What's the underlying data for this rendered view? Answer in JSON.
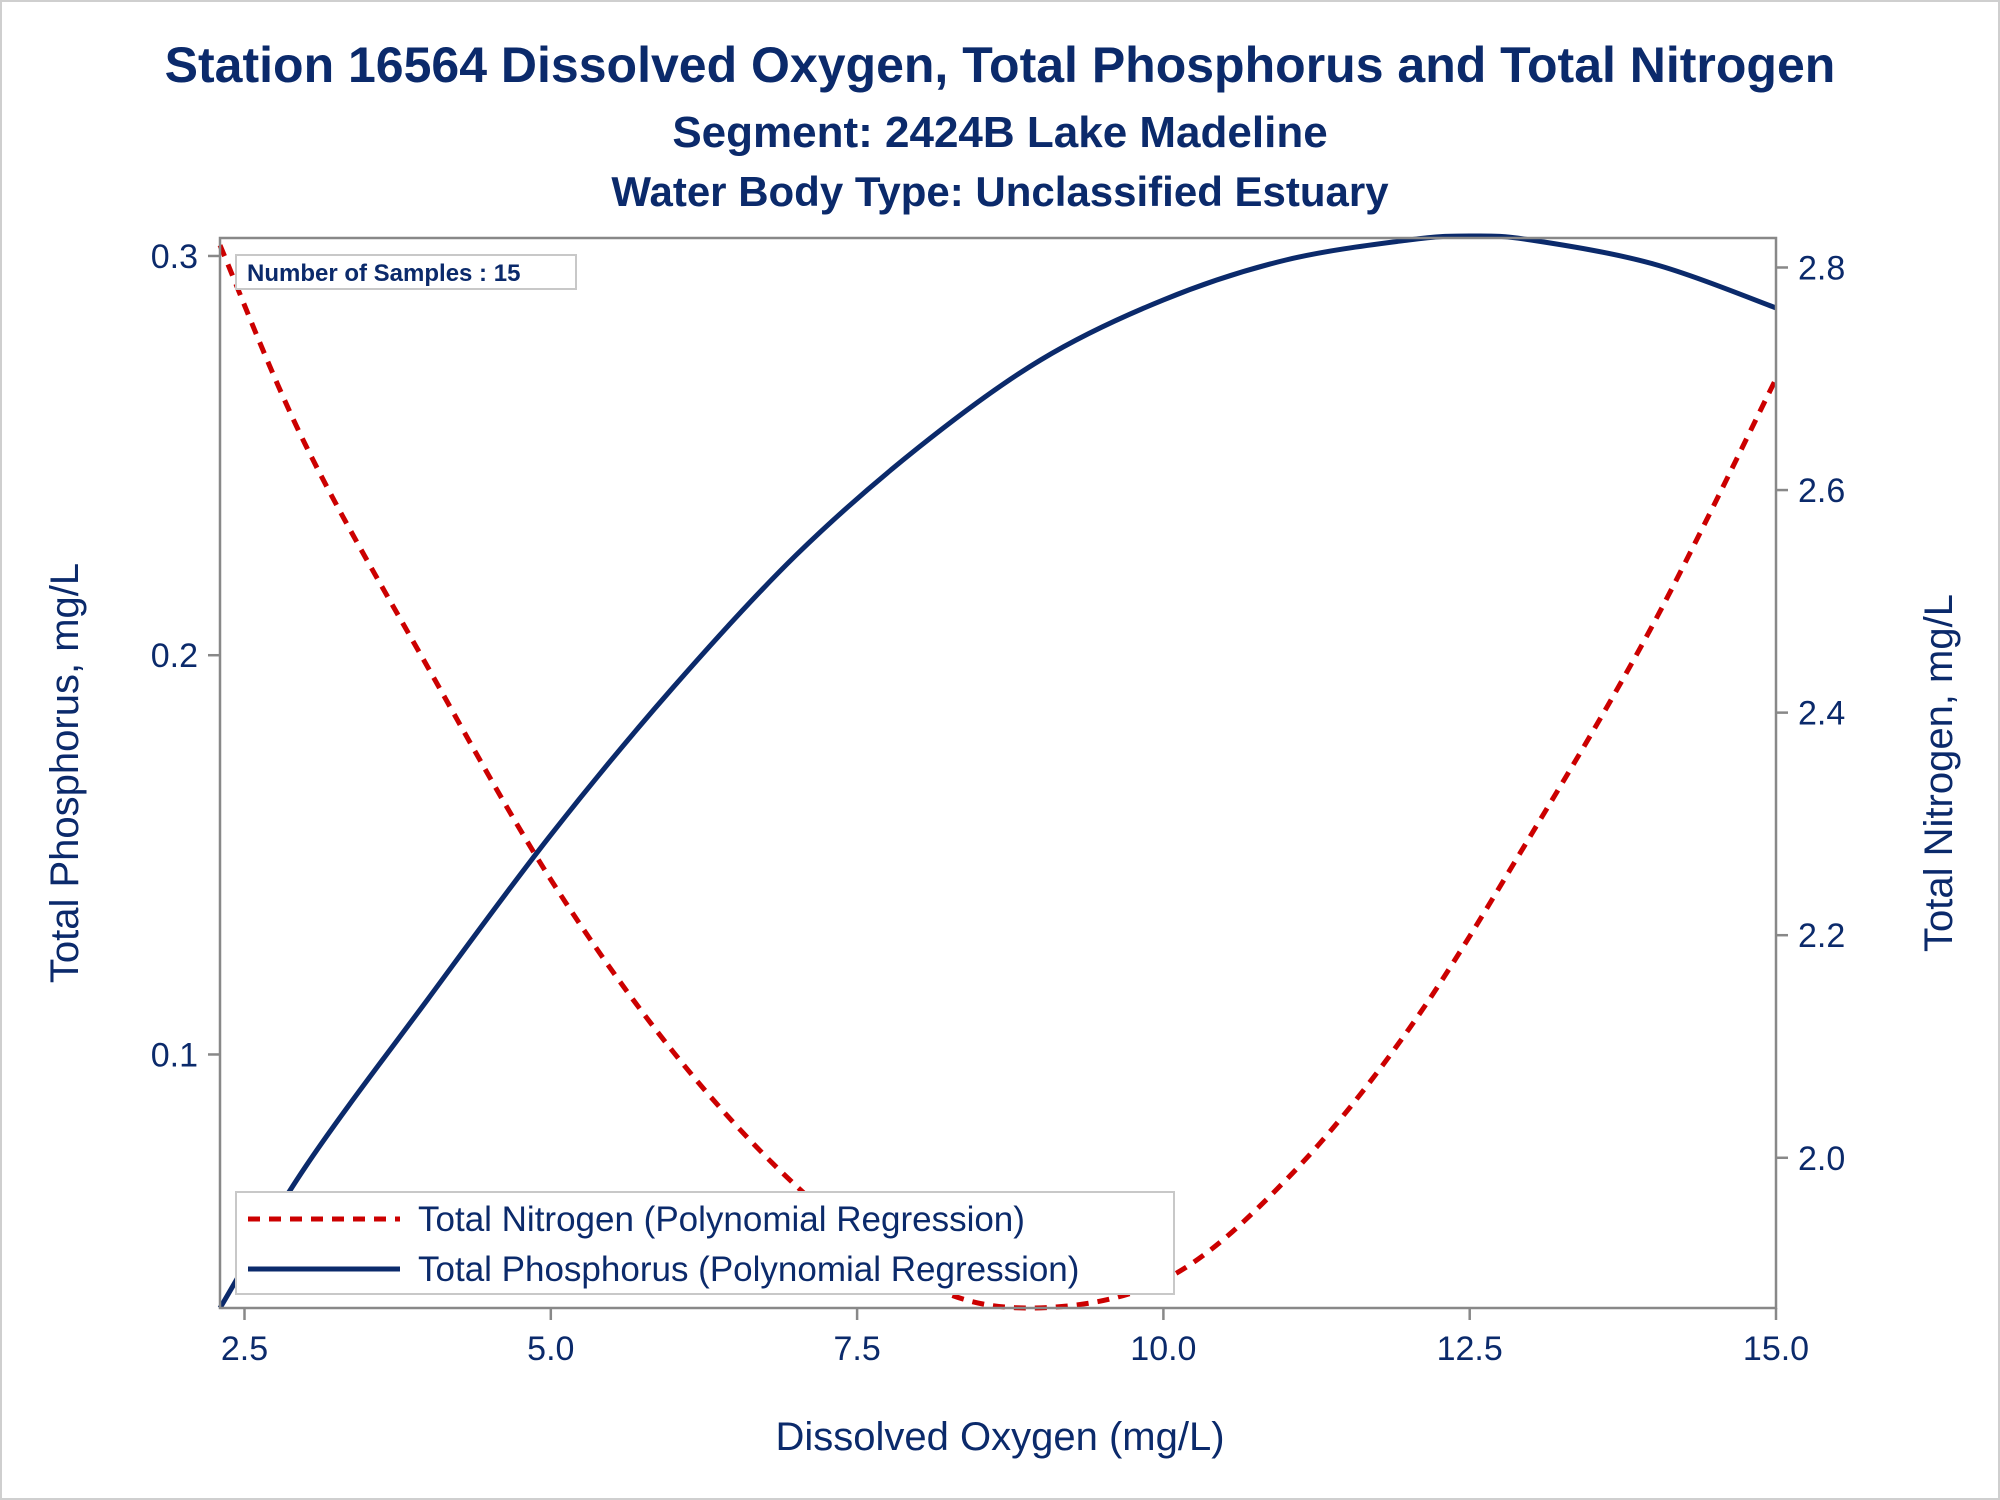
{
  "chart_data": {
    "type": "line",
    "title": "Station 16564  Dissolved Oxygen, Total Phosphorus and Total Nitrogen",
    "subtitle": "Segment: 2424B  Lake Madeline",
    "subtitle2": "Water Body Type: Unclassified Estuary",
    "xlabel": "Dissolved Oxygen (mg/L)",
    "ylabel_left": "Total Phosphorus, mg/L",
    "ylabel_right": "Total Nitrogen, mg/L",
    "xlim": [
      2.3,
      15.0
    ],
    "ylim_left": [
      0.0365,
      0.3045
    ],
    "ylim_right": [
      1.865,
      2.8265
    ],
    "x_ticks": [
      2.5,
      5.0,
      7.5,
      10.0,
      12.5,
      15.0
    ],
    "x_tick_labels": [
      "2.5",
      "5.0",
      "7.5",
      "10.0",
      "12.5",
      "15.0"
    ],
    "y_left_ticks": [
      0.1,
      0.2,
      0.3
    ],
    "y_left_tick_labels": [
      "0.1",
      "0.2",
      "0.3"
    ],
    "y_right_ticks": [
      2.0,
      2.2,
      2.4,
      2.6,
      2.8
    ],
    "y_right_tick_labels": [
      "2.0",
      "2.2",
      "2.4",
      "2.6",
      "2.8"
    ],
    "annotation": "Number of Samples : 15",
    "legend_position": "bottom-left",
    "grid": false,
    "series": [
      {
        "name": "Total Nitrogen (Polynomial Regression)",
        "axis": "right",
        "style": "dashed",
        "color": "#cc0000",
        "x": [
          2.3,
          3.0,
          4.0,
          5.0,
          6.0,
          7.0,
          8.0,
          8.9,
          10.0,
          11.0,
          12.0,
          13.0,
          14.0,
          15.0
        ],
        "values": [
          2.82,
          2.64,
          2.44,
          2.25,
          2.095,
          1.975,
          1.89,
          1.865,
          1.89,
          1.98,
          2.115,
          2.29,
          2.48,
          2.7
        ]
      },
      {
        "name": "Total Phosphorus (Polynomial Regression)",
        "axis": "left",
        "style": "solid",
        "color": "#0b2a6b",
        "x": [
          2.3,
          3.0,
          4.0,
          5.0,
          6.0,
          7.0,
          8.0,
          9.0,
          10.0,
          11.0,
          12.0,
          12.5,
          13.0,
          14.0,
          15.0
        ],
        "values": [
          0.0365,
          0.072,
          0.114,
          0.155,
          0.192,
          0.225,
          0.252,
          0.274,
          0.289,
          0.299,
          0.304,
          0.305,
          0.304,
          0.298,
          0.287
        ]
      }
    ],
    "colors": {
      "text": "#0b2a6b",
      "frame": "#888888"
    }
  }
}
